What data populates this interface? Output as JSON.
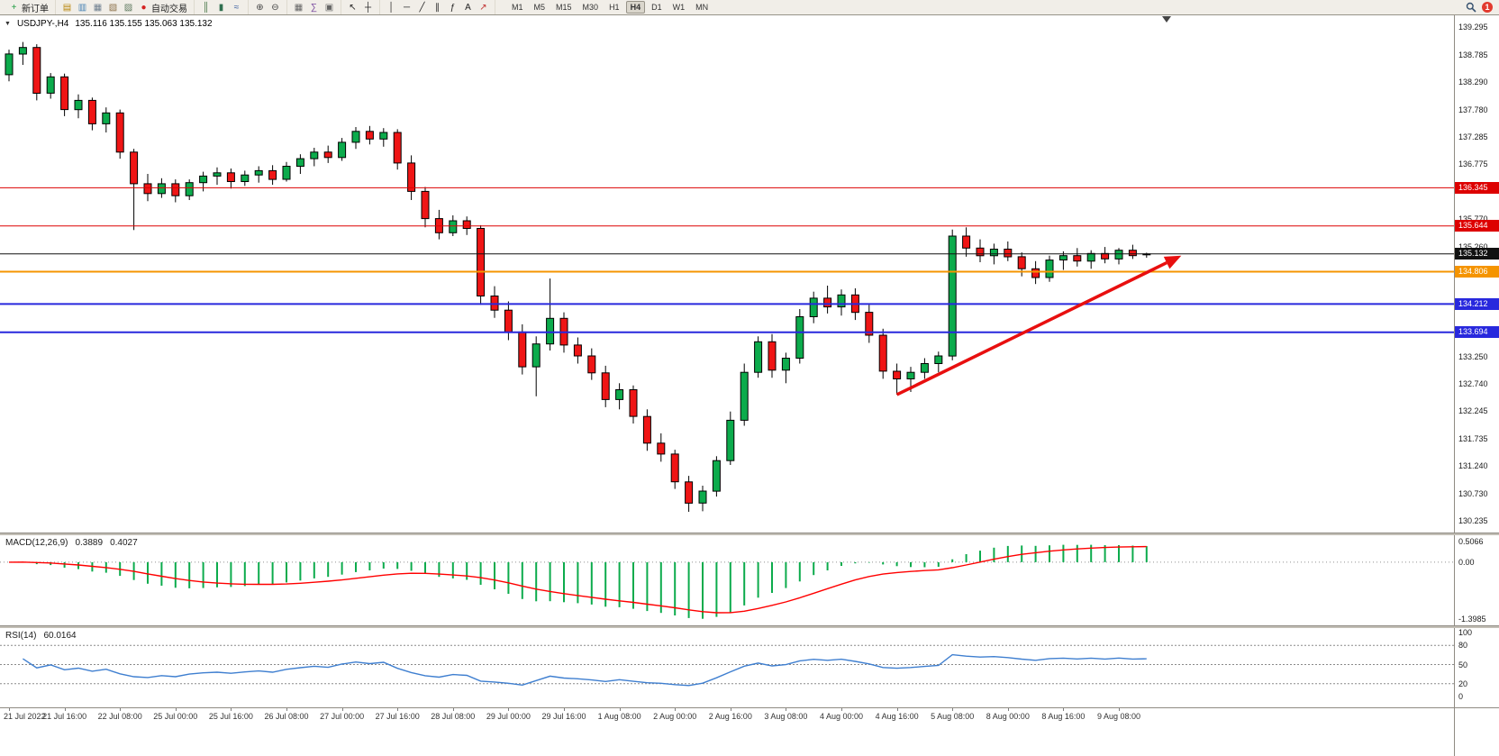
{
  "toolbar": {
    "notification_count": "1",
    "groups": [
      {
        "name": "trade",
        "items": [
          {
            "name": "new-order-button",
            "icon": "order-ticket-icon",
            "glyph": "+",
            "glyph_color": "#1f9d40",
            "label": "新订单"
          }
        ]
      },
      {
        "name": "panels",
        "items": [
          {
            "name": "market-watch-button",
            "icon": "market-watch-icon",
            "glyph": "▤",
            "glyph_color": "#b8860b"
          },
          {
            "name": "data-window-button",
            "icon": "data-window-icon",
            "glyph": "▥",
            "glyph_color": "#4682b4"
          },
          {
            "name": "navigator-button",
            "icon": "navigator-icon",
            "glyph": "▦",
            "glyph_color": "#708090"
          },
          {
            "name": "terminal-button",
            "icon": "terminal-icon",
            "glyph": "▧",
            "glyph_color": "#8b6f47"
          },
          {
            "name": "strategy-tester-button",
            "icon": "strategy-tester-icon",
            "glyph": "▨",
            "glyph_color": "#5f7a5f"
          },
          {
            "name": "autotrading-button",
            "icon": "autotrading-icon",
            "glyph": "●",
            "glyph_color": "#d42222",
            "label": "自动交易"
          }
        ]
      },
      {
        "name": "chart-type",
        "items": [
          {
            "name": "bar-chart-button",
            "icon": "bar-chart-icon",
            "glyph": "║",
            "glyph_color": "#3a6e3a"
          },
          {
            "name": "candlestick-button",
            "icon": "candlestick-icon",
            "glyph": "▮",
            "glyph_color": "#2f6f4f"
          },
          {
            "name": "line-chart-button",
            "icon": "line-chart-icon",
            "glyph": "≈",
            "glyph_color": "#3a5fa0"
          }
        ]
      },
      {
        "name": "zoom",
        "items": [
          {
            "name": "zoom-in-button",
            "icon": "zoom-in-icon",
            "glyph": "⊕",
            "glyph_color": "#444444"
          },
          {
            "name": "zoom-out-button",
            "icon": "zoom-out-icon",
            "glyph": "⊖",
            "glyph_color": "#444444"
          }
        ]
      },
      {
        "name": "windows",
        "items": [
          {
            "name": "tile-windows-button",
            "icon": "tile-windows-icon",
            "glyph": "▦",
            "glyph_color": "#666666"
          },
          {
            "name": "indicators-button",
            "icon": "indicators-icon",
            "glyph": "∑",
            "glyph_color": "#7a4aa0"
          },
          {
            "name": "templates-button",
            "icon": "templates-icon",
            "glyph": "▣",
            "glyph_color": "#666666"
          }
        ]
      },
      {
        "name": "cursor-tools",
        "items": [
          {
            "name": "cursor-button",
            "icon": "cursor-icon",
            "glyph": "↖",
            "glyph_color": "#222222"
          },
          {
            "name": "crosshair-button",
            "icon": "crosshair-icon",
            "glyph": "┼",
            "glyph_color": "#222222"
          }
        ]
      },
      {
        "name": "draw-tools",
        "items": [
          {
            "name": "vertical-line-button",
            "icon": "vertical-line-icon",
            "glyph": "│",
            "glyph_color": "#222222"
          },
          {
            "name": "horizontal-line-button",
            "icon": "horizontal-line-icon",
            "glyph": "─",
            "glyph_color": "#222222"
          },
          {
            "name": "trendline-button",
            "icon": "trendline-icon",
            "glyph": "╱",
            "glyph_color": "#222222"
          },
          {
            "name": "channel-button",
            "icon": "channel-icon",
            "glyph": "∥",
            "glyph_color": "#222222"
          },
          {
            "name": "fibonacci-button",
            "icon": "fibonacci-icon",
            "glyph": "ƒ",
            "glyph_color": "#222222"
          },
          {
            "name": "text-button",
            "icon": "text-icon",
            "glyph": "A",
            "glyph_color": "#222222"
          },
          {
            "name": "arrows-button",
            "icon": "arrow-tool-icon",
            "glyph": "↗",
            "glyph_color": "#c03030"
          }
        ]
      }
    ],
    "timeframes": {
      "items": [
        "M1",
        "M5",
        "M15",
        "M30",
        "H1",
        "H4",
        "D1",
        "W1",
        "MN"
      ],
      "active": "H4"
    }
  },
  "chart": {
    "collapse_icon": "▼",
    "symbol_period": "USDJPY-,H4",
    "ohlc_text": "135.116 135.155 135.063 135.132",
    "price_axis": {
      "max": 139.295,
      "min": 130.235,
      "ticks": [
        "139.295",
        "138.785",
        "138.290",
        "137.780",
        "137.285",
        "136.775",
        "136.280",
        "135.770",
        "135.260",
        "133.250",
        "132.740",
        "132.245",
        "131.735",
        "131.240",
        "130.730",
        "130.235"
      ]
    },
    "lines": [
      {
        "name": "resistance-line-1",
        "price": 136.345,
        "label": "136.345",
        "color": "#dd0000",
        "width": 1
      },
      {
        "name": "resistance-line-2",
        "price": 135.644,
        "label": "135.644",
        "color": "#dd0000",
        "width": 1
      },
      {
        "name": "pivot-line",
        "price": 134.806,
        "label": "134.806",
        "color": "#f59400",
        "width": 2
      },
      {
        "name": "support-line-1",
        "price": 134.212,
        "label": "134.212",
        "color": "#2828dd",
        "width": 2
      },
      {
        "name": "support-line-2",
        "price": 133.694,
        "label": "133.694",
        "color": "#2828dd",
        "width": 2
      }
    ],
    "bid_line": {
      "price": 135.132,
      "label": "135.132",
      "color": "#111111",
      "width": 1
    },
    "trend_arrow": {
      "color": "#e80f0f",
      "from": {
        "bar": 64,
        "price": 132.55
      },
      "to": {
        "bar": 84.5,
        "price": 135.1
      }
    }
  },
  "macd": {
    "name": "MACD(12,26,9)",
    "value_main": "0.3889",
    "value_signal": "0.4027",
    "params": {
      "fast": 12,
      "slow": 26,
      "signal": 9
    },
    "axis": {
      "max": 0.5066,
      "min": -1.3985,
      "labels": [
        {
          "text": "0.5066",
          "value": 0.5066
        },
        {
          "text": "0.00",
          "value": 0
        },
        {
          "text": "-1.3985",
          "value": -1.3985
        }
      ]
    },
    "colors": {
      "histogram": "#0cab4c",
      "signal": "#ff0000"
    }
  },
  "rsi": {
    "name": "RSI(14)",
    "value": "60.0164",
    "period": 14,
    "color": "#3f7fd0",
    "levels": [
      80,
      50,
      20
    ],
    "axis": {
      "max": 100,
      "min": 0,
      "labels": [
        {
          "text": "100",
          "value": 100
        },
        {
          "text": "80",
          "value": 80
        },
        {
          "text": "50",
          "value": 50
        },
        {
          "text": "20",
          "value": 20
        },
        {
          "text": "0",
          "value": 0
        }
      ]
    }
  },
  "chart_data": {
    "type": "candlestick",
    "symbol": "USDJPY-",
    "timeframe": "H4",
    "up_color": "#0cab4c",
    "down_color": "#ef1515",
    "wick_color": "#000000",
    "time_labels": [
      "21 Jul 2022",
      "21 Jul 16:00",
      "22 Jul 08:00",
      "25 Jul 00:00",
      "25 Jul 16:00",
      "26 Jul 08:00",
      "27 Jul 00:00",
      "27 Jul 16:00",
      "28 Jul 08:00",
      "29 Jul 00:00",
      "29 Jul 16:00",
      "1 Aug 08:00",
      "2 Aug 00:00",
      "2 Aug 16:00",
      "3 Aug 08:00",
      "4 Aug 00:00",
      "4 Aug 16:00",
      "5 Aug 08:00",
      "8 Aug 00:00",
      "8 Aug 16:00",
      "9 Aug 08:00"
    ],
    "bars_per_label": 4,
    "ohlc": [
      [
        138.42,
        138.88,
        138.3,
        138.8
      ],
      [
        138.8,
        139.02,
        138.6,
        138.92
      ],
      [
        138.92,
        138.98,
        137.95,
        138.08
      ],
      [
        138.08,
        138.45,
        137.98,
        138.38
      ],
      [
        138.38,
        138.44,
        137.66,
        137.78
      ],
      [
        137.78,
        138.06,
        137.62,
        137.95
      ],
      [
        137.95,
        138.0,
        137.4,
        137.52
      ],
      [
        137.52,
        137.82,
        137.36,
        137.72
      ],
      [
        137.72,
        137.78,
        136.88,
        137.0
      ],
      [
        137.0,
        137.06,
        135.57,
        136.42
      ],
      [
        136.42,
        136.6,
        136.1,
        136.24
      ],
      [
        136.24,
        136.52,
        136.16,
        136.42
      ],
      [
        136.42,
        136.5,
        136.08,
        136.2
      ],
      [
        136.2,
        136.5,
        136.12,
        136.44
      ],
      [
        136.44,
        136.64,
        136.28,
        136.56
      ],
      [
        136.56,
        136.72,
        136.4,
        136.62
      ],
      [
        136.62,
        136.7,
        136.33,
        136.46
      ],
      [
        136.46,
        136.66,
        136.38,
        136.58
      ],
      [
        136.58,
        136.74,
        136.44,
        136.66
      ],
      [
        136.66,
        136.76,
        136.4,
        136.5
      ],
      [
        136.5,
        136.82,
        136.46,
        136.74
      ],
      [
        136.74,
        136.96,
        136.6,
        136.88
      ],
      [
        136.88,
        137.08,
        136.74,
        137.0
      ],
      [
        137.0,
        137.12,
        136.8,
        136.9
      ],
      [
        136.9,
        137.26,
        136.84,
        137.18
      ],
      [
        137.18,
        137.46,
        137.06,
        137.38
      ],
      [
        137.38,
        137.48,
        137.14,
        137.24
      ],
      [
        137.24,
        137.44,
        137.1,
        137.36
      ],
      [
        137.36,
        137.42,
        136.68,
        136.8
      ],
      [
        136.8,
        136.94,
        136.12,
        136.28
      ],
      [
        136.28,
        136.36,
        135.62,
        135.78
      ],
      [
        135.78,
        135.94,
        135.4,
        135.52
      ],
      [
        135.52,
        135.84,
        135.46,
        135.74
      ],
      [
        135.74,
        135.82,
        135.48,
        135.6
      ],
      [
        135.6,
        135.66,
        134.2,
        134.36
      ],
      [
        134.36,
        134.54,
        133.96,
        134.1
      ],
      [
        134.1,
        134.26,
        133.55,
        133.7
      ],
      [
        133.7,
        133.84,
        132.92,
        133.06
      ],
      [
        133.06,
        133.62,
        132.52,
        133.48
      ],
      [
        133.48,
        134.68,
        133.36,
        133.95
      ],
      [
        133.95,
        134.06,
        133.32,
        133.46
      ],
      [
        133.46,
        133.6,
        133.12,
        133.26
      ],
      [
        133.26,
        133.4,
        132.82,
        132.95
      ],
      [
        132.95,
        133.08,
        132.32,
        132.46
      ],
      [
        132.46,
        132.76,
        132.28,
        132.64
      ],
      [
        132.64,
        132.72,
        132.02,
        132.15
      ],
      [
        132.15,
        132.28,
        131.52,
        131.66
      ],
      [
        131.66,
        131.84,
        131.32,
        131.46
      ],
      [
        131.46,
        131.54,
        130.82,
        130.95
      ],
      [
        130.95,
        131.06,
        130.4,
        130.56
      ],
      [
        130.56,
        130.88,
        130.41,
        130.78
      ],
      [
        130.78,
        131.42,
        130.68,
        131.34
      ],
      [
        131.34,
        132.24,
        131.26,
        132.08
      ],
      [
        132.08,
        133.12,
        131.98,
        132.96
      ],
      [
        132.96,
        133.62,
        132.86,
        133.52
      ],
      [
        133.52,
        133.66,
        132.86,
        133.0
      ],
      [
        133.0,
        133.32,
        132.76,
        133.22
      ],
      [
        133.22,
        134.12,
        133.12,
        133.98
      ],
      [
        133.98,
        134.44,
        133.86,
        134.32
      ],
      [
        134.32,
        134.55,
        134.04,
        134.16
      ],
      [
        134.16,
        134.48,
        134.0,
        134.38
      ],
      [
        134.38,
        134.5,
        133.92,
        134.06
      ],
      [
        134.06,
        134.2,
        133.5,
        133.64
      ],
      [
        133.64,
        133.76,
        132.84,
        132.98
      ],
      [
        132.98,
        133.12,
        132.55,
        132.84
      ],
      [
        132.84,
        133.06,
        132.6,
        132.96
      ],
      [
        132.96,
        133.22,
        132.84,
        133.12
      ],
      [
        133.12,
        133.34,
        132.96,
        133.26
      ],
      [
        133.26,
        135.58,
        133.18,
        135.46
      ],
      [
        135.46,
        135.62,
        135.08,
        135.24
      ],
      [
        135.24,
        135.4,
        134.98,
        135.1
      ],
      [
        135.1,
        135.32,
        134.94,
        135.22
      ],
      [
        135.22,
        135.36,
        135.0,
        135.08
      ],
      [
        135.08,
        135.16,
        134.72,
        134.86
      ],
      [
        134.86,
        135.0,
        134.58,
        134.7
      ],
      [
        134.7,
        135.1,
        134.62,
        135.02
      ],
      [
        135.02,
        135.18,
        134.84,
        135.1
      ],
      [
        135.1,
        135.24,
        134.9,
        135.0
      ],
      [
        135.0,
        135.2,
        134.86,
        135.14
      ],
      [
        135.14,
        135.26,
        134.96,
        135.04
      ],
      [
        135.04,
        135.24,
        134.94,
        135.2
      ],
      [
        135.2,
        135.3,
        135.04,
        135.1
      ],
      [
        135.116,
        135.155,
        135.063,
        135.132
      ]
    ]
  }
}
